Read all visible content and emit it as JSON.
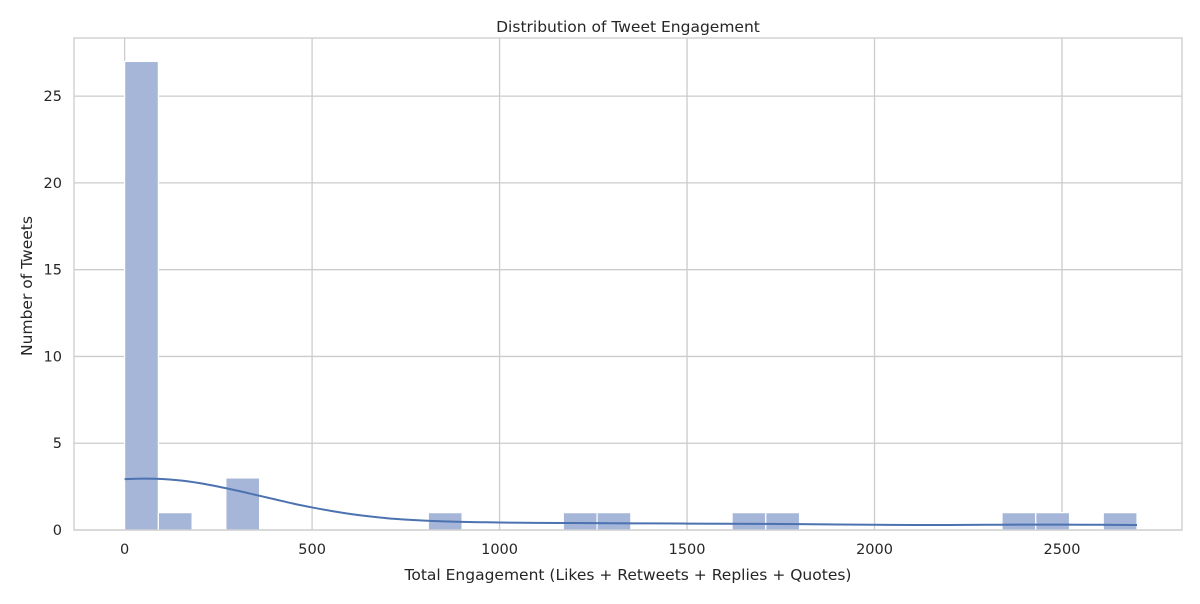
{
  "chart_data": {
    "type": "bar",
    "title": "Distribution of Tweet Engagement",
    "xlabel": "Total Engagement (Likes + Retweets + Replies + Quotes)",
    "ylabel": "Number of Tweets",
    "xlim": [
      -135,
      2820
    ],
    "ylim": [
      0,
      28.35
    ],
    "x_ticks": [
      0,
      500,
      1000,
      1500,
      2000,
      2500
    ],
    "y_ticks": [
      0,
      5,
      10,
      15,
      20,
      25
    ],
    "grid": true,
    "bins": [
      {
        "start": 0,
        "end": 90,
        "count": 27
      },
      {
        "start": 90,
        "end": 180,
        "count": 1
      },
      {
        "start": 270,
        "end": 360,
        "count": 3
      },
      {
        "start": 810,
        "end": 900,
        "count": 1
      },
      {
        "start": 1170,
        "end": 1260,
        "count": 1
      },
      {
        "start": 1260,
        "end": 1350,
        "count": 1
      },
      {
        "start": 1620,
        "end": 1710,
        "count": 1
      },
      {
        "start": 1710,
        "end": 1800,
        "count": 1
      },
      {
        "start": 2340,
        "end": 2430,
        "count": 1
      },
      {
        "start": 2430,
        "end": 2520,
        "count": 1
      },
      {
        "start": 2610,
        "end": 2700,
        "count": 1
      }
    ],
    "kde": {
      "x": [
        0,
        50,
        100,
        150,
        200,
        250,
        300,
        350,
        400,
        450,
        500,
        550,
        600,
        650,
        700,
        750,
        800,
        850,
        900,
        950,
        1000,
        1100,
        1200,
        1300,
        1400,
        1500,
        1600,
        1700,
        1800,
        1900,
        2000,
        2100,
        2200,
        2300,
        2400,
        2500,
        2600,
        2700
      ],
      "y": [
        2.93,
        2.96,
        2.94,
        2.85,
        2.7,
        2.5,
        2.27,
        2.02,
        1.77,
        1.52,
        1.3,
        1.1,
        0.93,
        0.79,
        0.68,
        0.6,
        0.54,
        0.5,
        0.47,
        0.45,
        0.43,
        0.41,
        0.4,
        0.39,
        0.38,
        0.37,
        0.36,
        0.35,
        0.34,
        0.32,
        0.3,
        0.29,
        0.29,
        0.3,
        0.31,
        0.31,
        0.3,
        0.29
      ]
    },
    "colors": {
      "bar_fill": "#a5b6d9",
      "bar_edge": "#ffffff",
      "kde_line": "#4c72b0",
      "grid": "#cccccc",
      "axis": "#cccccc"
    }
  }
}
